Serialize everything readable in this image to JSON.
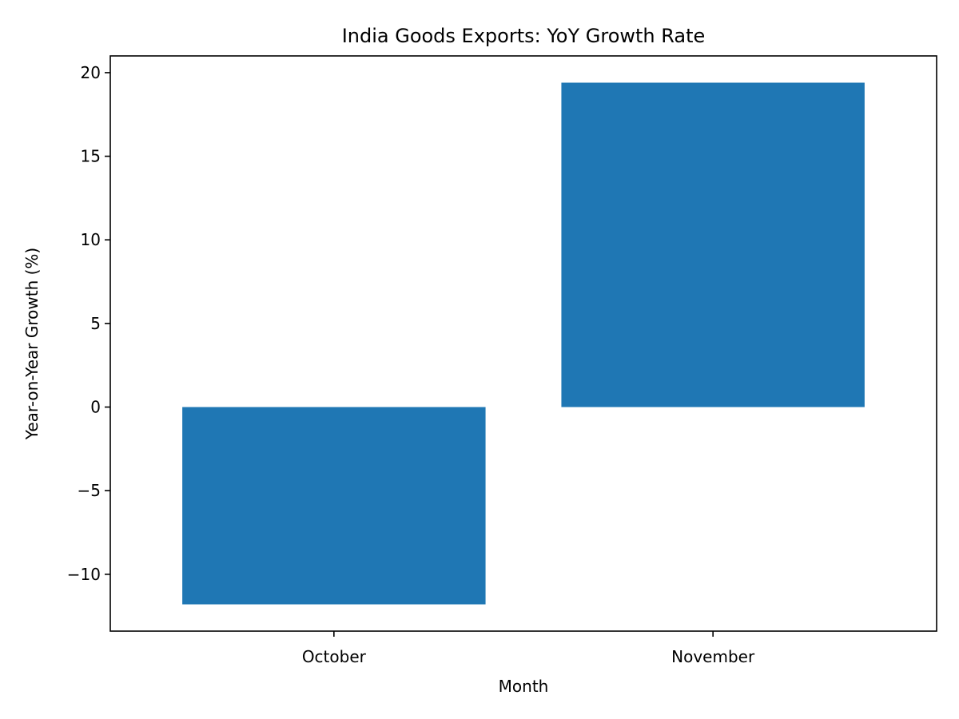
{
  "colors": {
    "bar": "#1f77b4",
    "axis": "#000000",
    "background": "#ffffff"
  },
  "chart_data": {
    "type": "bar",
    "title": "India Goods Exports: YoY Growth Rate",
    "xlabel": "Month",
    "ylabel": "Year-on-Year Growth (%)",
    "categories": [
      "October",
      "November"
    ],
    "values": [
      -11.8,
      19.4
    ],
    "ylim": [
      -13.4,
      21.0
    ],
    "yticks": [
      -10,
      -5,
      0,
      5,
      10,
      15,
      20
    ],
    "ytick_labels": [
      "−10",
      "−5",
      "0",
      "5",
      "10",
      "15",
      "20"
    ],
    "grid": false,
    "legend": false
  }
}
